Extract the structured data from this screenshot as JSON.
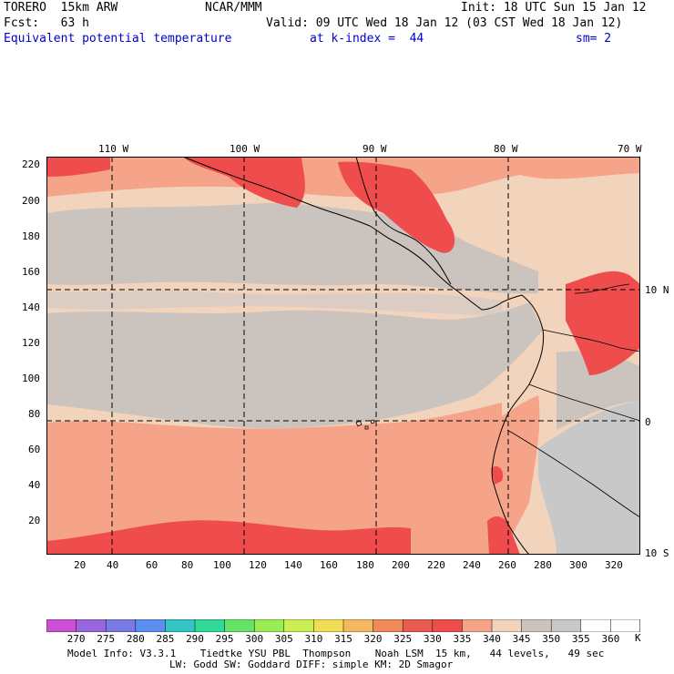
{
  "header": {
    "model": "TORERO  15km ARW",
    "org": "NCAR/MMM",
    "init": "Init: 18 UTC Sun 15 Jan 12",
    "fcst": "Fcst:   63 h",
    "valid": "Valid: 09 UTC Wed 18 Jan 12 (03 CST Wed 18 Jan 12)",
    "field": "Equivalent potential temperature",
    "level": "at k-index =  44",
    "smooth": "sm= 2"
  },
  "axes": {
    "left_ticks": [
      "220",
      "200",
      "180",
      "160",
      "140",
      "120",
      "100",
      "80",
      "60",
      "40",
      "20"
    ],
    "bottom_ticks": [
      "20",
      "40",
      "60",
      "80",
      "100",
      "120",
      "140",
      "160",
      "180",
      "200",
      "220",
      "240",
      "260",
      "280",
      "300",
      "320"
    ],
    "top_lon_labels": [
      "110 W",
      "100 W",
      "90 W",
      "80 W",
      "70 W"
    ],
    "right_lat_labels": [
      "10 N",
      "0",
      "10 S"
    ]
  },
  "colorbar": {
    "labels": [
      "270",
      "275",
      "280",
      "285",
      "290",
      "295",
      "300",
      "305",
      "310",
      "315",
      "320",
      "325",
      "330",
      "335",
      "340",
      "345",
      "350",
      "355",
      "360"
    ],
    "unit": "K",
    "colors": [
      "#cc4fd4",
      "#9966dd",
      "#7a7ae6",
      "#5a8ef0",
      "#33c4c4",
      "#33d99a",
      "#66e266",
      "#99ee55",
      "#ccee55",
      "#eedd55",
      "#f5b860",
      "#f08a5a",
      "#e85c50",
      "#ef4d4d",
      "#f5a48a",
      "#f2d3bc",
      "#cbc3be",
      "#c8c8c8",
      "#ffffff"
    ]
  },
  "footer": {
    "line1": "Model Info: V3.3.1    Tiedtke YSU PBL  Thompson    Noah LSM  15 km,   44 levels,   49 sec",
    "line2": "LW: Godd SW: Goddard DIFF: simple KM: 2D Smagor"
  }
}
